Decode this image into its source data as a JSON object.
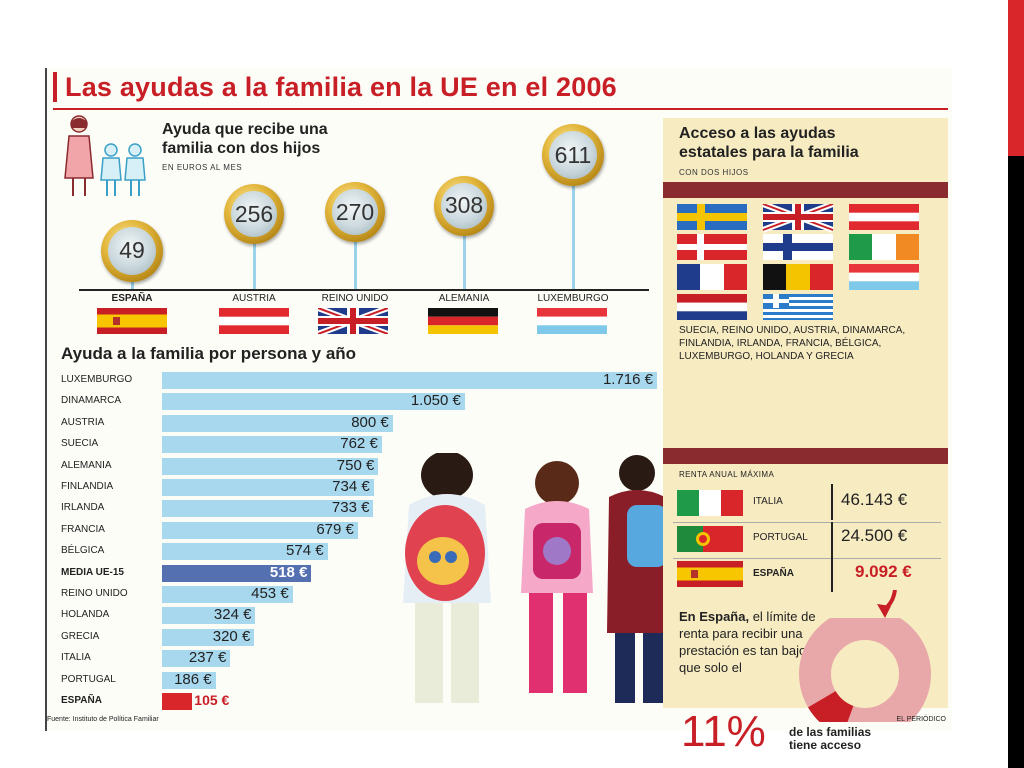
{
  "title": "Las ayudas a la familia en la UE en el 2006",
  "section1": {
    "title_line1": "Ayuda que recibe una",
    "title_line2": "familia con dos hijos",
    "unit": "EN EUROS AL MES"
  },
  "section2": {
    "title": "Ayuda a la familia por persona y año"
  },
  "access": {
    "title_line1": "Acceso a las ayudas",
    "title_line2": "estatales para la familia",
    "subtitle": "CON DOS HIJOS",
    "countries_text": "SUECIA, REINO UNIDO, AUSTRIA, DINAMARCA, FINLANDIA, IRLANDA, FRANCIA, BÉLGICA, LUXEMBURGO, HOLANDA  Y GRECIA",
    "renta_label": "RENTA ANUAL MÁXIMA",
    "renta_rows": [
      {
        "country": "ITALIA",
        "value": "46.143 €"
      },
      {
        "country": "PORTUGAL",
        "value": "24.500 €"
      },
      {
        "country": "ESPAÑA",
        "value": "9.092 €"
      }
    ],
    "espana_bold": "En España,",
    "espana_rest": " el límite de renta para recibir una prestación es tan bajo que solo el",
    "percent": "11%",
    "percent_text_line1": "de las familias",
    "percent_text_line2": "tiene acceso",
    "donut_fraction": 0.11
  },
  "source": "Fuente: Instituto de Política Familiar",
  "credit": "EL PERIÓDICO",
  "colors": {
    "accent": "#c81e25",
    "bar": "#a8d8ee",
    "bar_media": "#5570b0",
    "bar_espana": "#d8262b",
    "panel": "#f7ebc2",
    "band": "#8a2b2f",
    "donut": "#e8a7a8"
  },
  "chart_data": [
    {
      "type": "bar",
      "title": "Ayuda que recibe una familia con dos hijos",
      "ylabel": "EN EUROS AL MES",
      "categories": [
        "ESPAÑA",
        "AUSTRIA",
        "REINO UNIDO",
        "ALEMANIA",
        "LUXEMBURGO"
      ],
      "values": [
        49,
        256,
        270,
        308,
        611
      ],
      "labels": [
        "49",
        "256",
        "270",
        "308",
        "611"
      ]
    },
    {
      "type": "bar",
      "orientation": "horizontal",
      "title": "Ayuda a la familia por persona y año",
      "categories": [
        "LUXEMBURGO",
        "DINAMARCA",
        "AUSTRIA",
        "SUECIA",
        "ALEMANIA",
        "FINLANDIA",
        "IRLANDA",
        "FRANCIA",
        "BÉLGICA",
        "MEDIA UE-15",
        "REINO UNIDO",
        "HOLANDA",
        "GRECIA",
        "ITALIA",
        "PORTUGAL",
        "ESPAÑA"
      ],
      "values": [
        1716,
        1050,
        800,
        762,
        750,
        734,
        733,
        679,
        574,
        518,
        453,
        324,
        320,
        237,
        186,
        105
      ],
      "labels": [
        "1.716 €",
        "1.050 €",
        "800 €",
        "762 €",
        "750 €",
        "734 €",
        "733 €",
        "679 €",
        "574 €",
        "518 €",
        "453 €",
        "324 €",
        "320 €",
        "237 €",
        "186 €",
        "105 €"
      ],
      "highlight": {
        "MEDIA UE-15": "media",
        "ESPAÑA": "espana"
      }
    }
  ]
}
